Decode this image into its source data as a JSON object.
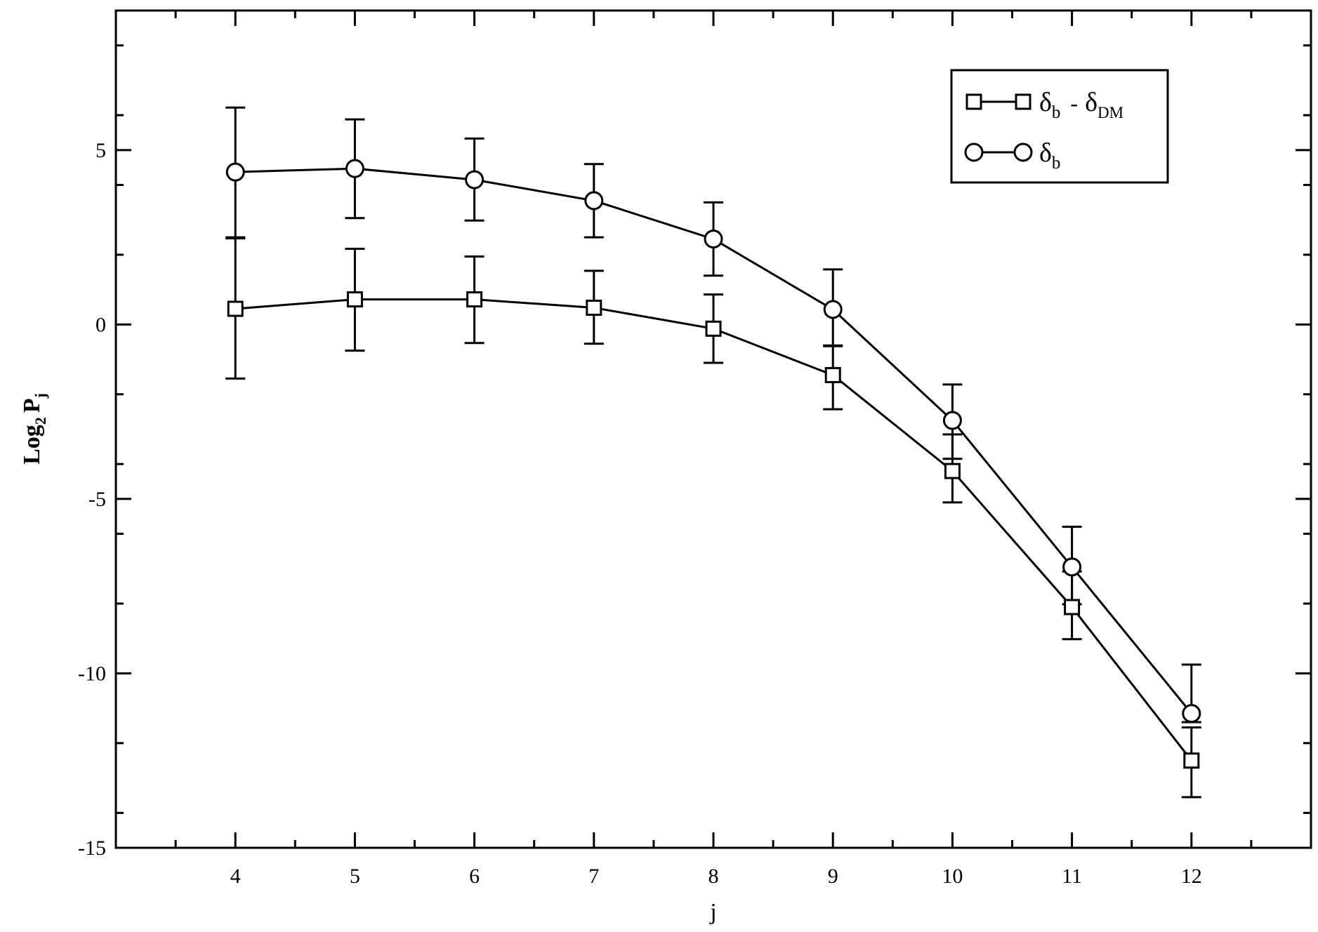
{
  "chart_data": {
    "type": "line",
    "xlabel": "j",
    "ylabel": {
      "base": "Log",
      "base_sub": "2",
      "main": "P",
      "main_sub": "j"
    },
    "xlim": [
      3,
      13
    ],
    "ylim": [
      -15,
      9
    ],
    "xticks": [
      4,
      5,
      6,
      7,
      8,
      9,
      10,
      11,
      12
    ],
    "yticks": [
      -15,
      -10,
      -5,
      0,
      5
    ],
    "y_minor_step": 2,
    "grid": false,
    "legend_position": "top-right",
    "x": [
      4,
      5,
      6,
      7,
      8,
      9,
      10,
      11,
      12
    ],
    "series": [
      {
        "marker": "square",
        "legend": {
          "d1": "δ",
          "d1_sub": "b",
          "dash": "-",
          "d2": "δ",
          "d2_sub": "DM"
        },
        "values": [
          0.45,
          0.72,
          0.72,
          0.48,
          -0.12,
          -1.45,
          -4.2,
          -8.1,
          -12.5
        ],
        "err_lo": [
          2.0,
          1.47,
          1.25,
          1.03,
          0.98,
          0.98,
          0.9,
          0.92,
          1.05
        ],
        "err_hi": [
          2.05,
          1.45,
          1.23,
          1.06,
          0.98,
          0.85,
          1.05,
          1.02,
          0.95
        ]
      },
      {
        "marker": "circle",
        "legend": {
          "d1": "δ",
          "d1_sub": "b"
        },
        "values": [
          4.37,
          4.47,
          4.15,
          3.55,
          2.45,
          0.43,
          -2.75,
          -6.95,
          -11.15
        ],
        "err_lo": [
          1.9,
          1.42,
          1.17,
          1.05,
          1.05,
          1.05,
          1.1,
          1.07,
          0.25
        ],
        "err_hi": [
          1.85,
          1.41,
          1.18,
          1.05,
          1.05,
          1.15,
          1.03,
          1.15,
          1.4
        ]
      }
    ]
  }
}
